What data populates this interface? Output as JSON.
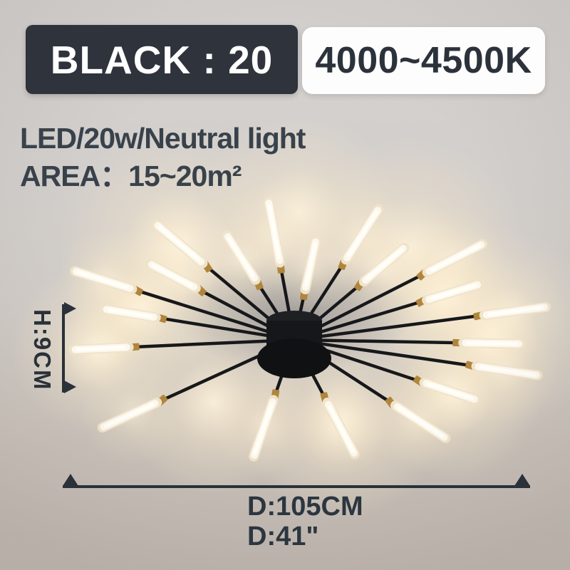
{
  "product_image": {
    "badges": {
      "variant": "BLACK : 20",
      "color_temp": "4000~4500K"
    },
    "specs": {
      "line1": "LED/20w/Neutral light",
      "line2": "AREA：15~20m²"
    },
    "dimensions": {
      "height": "H:9CM",
      "diameter_cm": "D:105CM",
      "diameter_inch": "D:41\""
    },
    "lamp": {
      "heads": 20,
      "style": "firework sputnik ceiling lamp",
      "finish_color": "#17181b",
      "connector_color": "#b0853c",
      "tube_color": "#fdf6e8",
      "annotation_color": "#2b3239",
      "badge_dark_bg": "#2e333c",
      "badge_light_bg": "#fdfdfd"
    }
  }
}
